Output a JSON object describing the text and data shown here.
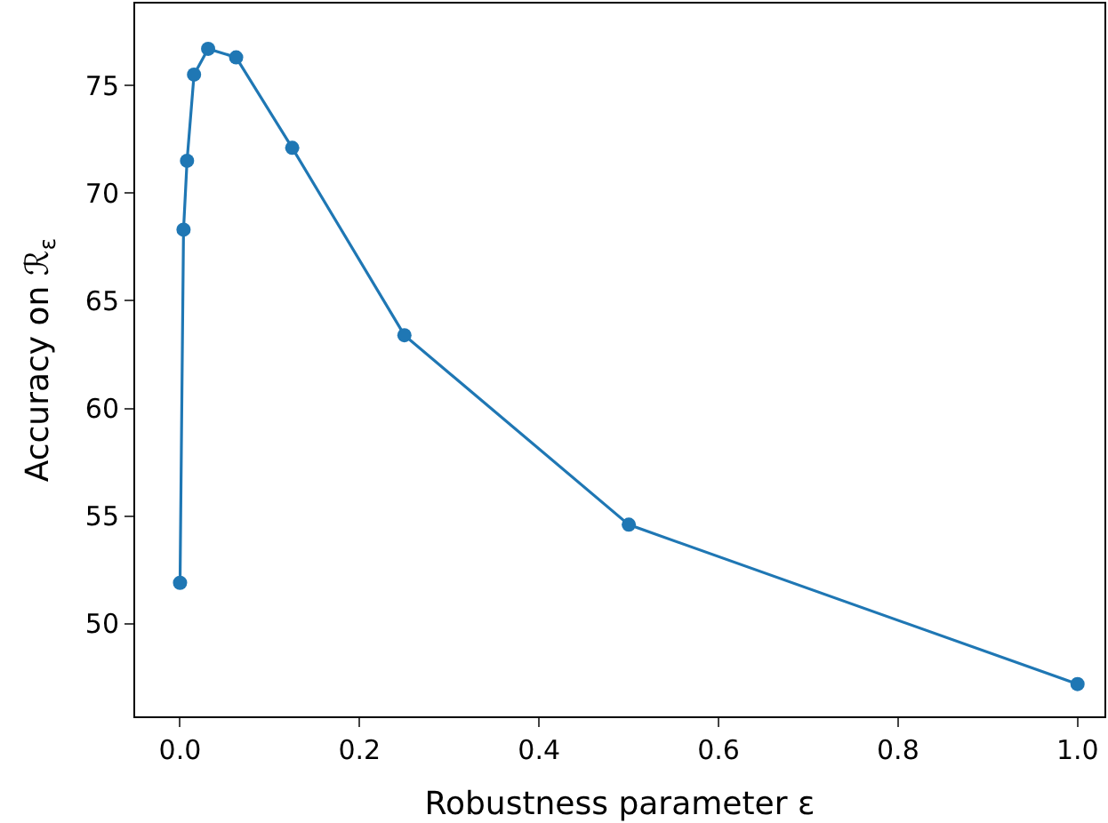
{
  "chart_data": {
    "type": "line",
    "xlabel": "Robustness parameter ε",
    "ylabel": "Accuracy on ℛ$_{ε}$",
    "x": [
      0,
      0.0039,
      0.0078,
      0.0156,
      0.0313,
      0.0625,
      0.125,
      0.25,
      0.5,
      1.0
    ],
    "series": [
      {
        "color": "#1f77b4",
        "values": [
          51.9,
          68.3,
          71.5,
          75.5,
          76.7,
          76.3,
          72.1,
          63.4,
          54.6,
          47.2
        ]
      }
    ],
    "xlim": [
      -0.05,
      1.03
    ],
    "ylim": [
      45.7,
      78.8
    ],
    "xticks": [
      {
        "value": 0,
        "label": "0.0"
      },
      {
        "value": 0.2,
        "label": "0.2"
      },
      {
        "value": 0.4,
        "label": "0.4"
      },
      {
        "value": 0.6,
        "label": "0.6"
      },
      {
        "value": 0.8,
        "label": "0.8"
      },
      {
        "value": 1.0,
        "label": "1.0"
      }
    ],
    "yticks": [
      50,
      55,
      60,
      65,
      70,
      75
    ],
    "marker": "circle",
    "line_style": "solid"
  }
}
